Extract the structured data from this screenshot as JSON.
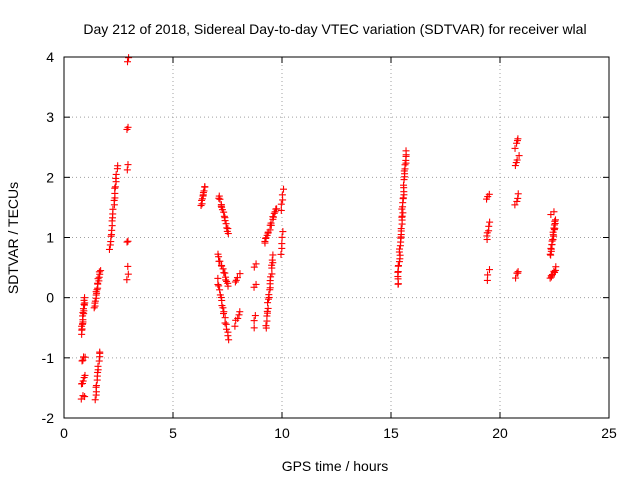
{
  "chart_data": {
    "type": "scatter",
    "title": "Day 212 of 2018, Sidereal Day-to-day VTEC variation (SDTVAR) for receiver wlal",
    "xlabel": "GPS time / hours",
    "ylabel": "SDTVAR / TECUs",
    "xlim": [
      0,
      25
    ],
    "ylim": [
      -2,
      4
    ],
    "xticks": [
      0,
      5,
      10,
      15,
      20,
      25
    ],
    "yticks": [
      -2,
      -1,
      0,
      1,
      2,
      3,
      4
    ],
    "xtick_labels": [
      "0",
      "5",
      "10",
      "15",
      "20",
      "25"
    ],
    "ytick_labels": [
      "-2",
      "-1",
      "0",
      "1",
      "2",
      "3",
      "4"
    ],
    "grid": true,
    "marker": "plus",
    "color": "#ff0000",
    "segments": [
      {
        "x0": 0.8,
        "x1": 0.95,
        "y0": -0.6,
        "y1": 0.0,
        "n": 18
      },
      {
        "x0": 0.8,
        "x1": 0.95,
        "y0": -1.05,
        "y1": -0.98,
        "n": 4
      },
      {
        "x0": 0.8,
        "x1": 0.95,
        "y0": -1.45,
        "y1": -1.28,
        "n": 5
      },
      {
        "x0": 0.8,
        "x1": 0.95,
        "y0": -1.68,
        "y1": -1.62,
        "n": 3
      },
      {
        "x0": 1.4,
        "x1": 1.65,
        "y0": -0.15,
        "y1": 0.45,
        "n": 18
      },
      {
        "x0": 1.45,
        "x1": 1.65,
        "y0": -1.7,
        "y1": -0.88,
        "n": 14
      },
      {
        "x0": 2.1,
        "x1": 2.45,
        "y0": 0.8,
        "y1": 2.2,
        "n": 22
      },
      {
        "x0": 2.9,
        "x1": 2.95,
        "y0": 0.3,
        "y1": 0.5,
        "n": 3
      },
      {
        "x0": 2.9,
        "x1": 2.95,
        "y0": 0.9,
        "y1": 0.95,
        "n": 2
      },
      {
        "x0": 2.9,
        "x1": 2.95,
        "y0": 2.1,
        "y1": 2.2,
        "n": 2
      },
      {
        "x0": 2.9,
        "x1": 2.95,
        "y0": 2.78,
        "y1": 2.83,
        "n": 2
      },
      {
        "x0": 2.9,
        "x1": 2.95,
        "y0": 3.92,
        "y1": 3.98,
        "n": 2
      },
      {
        "x0": 6.3,
        "x1": 6.45,
        "y0": 1.55,
        "y1": 1.85,
        "n": 10
      },
      {
        "x0": 7.1,
        "x1": 7.55,
        "y0": 1.7,
        "y1": 1.05,
        "n": 16
      },
      {
        "x0": 7.05,
        "x1": 7.55,
        "y0": 0.7,
        "y1": 0.2,
        "n": 14
      },
      {
        "x0": 7.05,
        "x1": 7.55,
        "y0": 0.3,
        "y1": -0.7,
        "n": 18
      },
      {
        "x0": 7.85,
        "x1": 8.05,
        "y0": 0.25,
        "y1": 0.4,
        "n": 4
      },
      {
        "x0": 7.85,
        "x1": 8.05,
        "y0": -0.45,
        "y1": -0.25,
        "n": 5
      },
      {
        "x0": 8.7,
        "x1": 8.8,
        "y0": 0.5,
        "y1": 0.58,
        "n": 2
      },
      {
        "x0": 8.7,
        "x1": 8.8,
        "y0": 0.18,
        "y1": 0.22,
        "n": 2
      },
      {
        "x0": 8.7,
        "x1": 8.8,
        "y0": -0.5,
        "y1": -0.28,
        "n": 3
      },
      {
        "x0": 9.25,
        "x1": 9.6,
        "y0": -0.5,
        "y1": 0.7,
        "n": 22
      },
      {
        "x0": 9.2,
        "x1": 9.75,
        "y0": 0.9,
        "y1": 1.5,
        "n": 18
      },
      {
        "x0": 9.95,
        "x1": 10.05,
        "y0": 0.7,
        "y1": 1.1,
        "n": 5
      },
      {
        "x0": 9.95,
        "x1": 10.05,
        "y0": 1.45,
        "y1": 1.8,
        "n": 5
      },
      {
        "x0": 15.3,
        "x1": 15.7,
        "y0": 0.2,
        "y1": 2.45,
        "n": 45
      },
      {
        "x0": 19.4,
        "x1": 19.5,
        "y0": 0.3,
        "y1": 0.45,
        "n": 3
      },
      {
        "x0": 19.4,
        "x1": 19.5,
        "y0": 0.95,
        "y1": 1.25,
        "n": 6
      },
      {
        "x0": 19.4,
        "x1": 19.5,
        "y0": 1.62,
        "y1": 1.7,
        "n": 3
      },
      {
        "x0": 20.7,
        "x1": 20.85,
        "y0": 0.35,
        "y1": 0.45,
        "n": 4
      },
      {
        "x0": 20.7,
        "x1": 20.85,
        "y0": 1.55,
        "y1": 1.72,
        "n": 4
      },
      {
        "x0": 20.7,
        "x1": 20.85,
        "y0": 2.2,
        "y1": 2.35,
        "n": 4
      },
      {
        "x0": 20.7,
        "x1": 20.85,
        "y0": 2.5,
        "y1": 2.65,
        "n": 4
      },
      {
        "x0": 22.3,
        "x1": 22.55,
        "y0": 0.3,
        "y1": 0.5,
        "n": 8
      },
      {
        "x0": 22.3,
        "x1": 22.55,
        "y0": 0.7,
        "y1": 1.3,
        "n": 20
      },
      {
        "x0": 22.35,
        "x1": 22.45,
        "y0": 1.38,
        "y1": 1.45,
        "n": 2
      }
    ]
  }
}
